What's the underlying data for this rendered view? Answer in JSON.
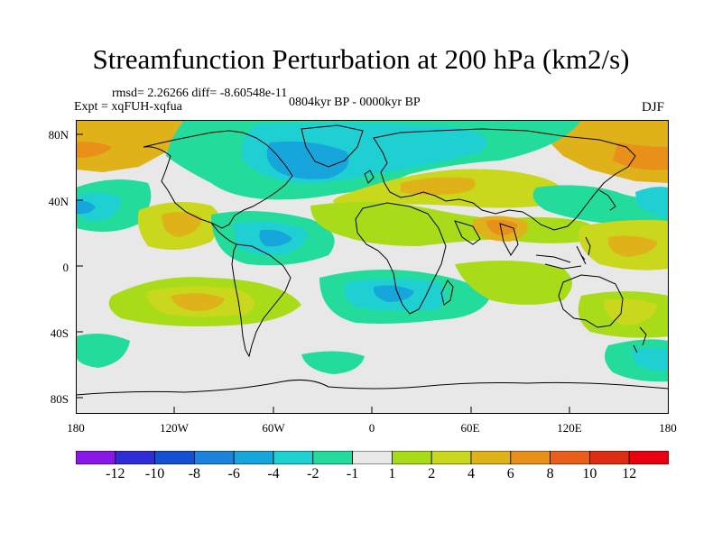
{
  "title": "Streamfunction Perturbation at 200 hPa (km2/s)",
  "stats": "rmsd= 2.26266 diff= -8.60548e-11",
  "experiment": "Expt = xqFUH-xqfua",
  "period": "0804kyr BP - 0000kyr BP",
  "season": "DJF",
  "lat_labels": [
    "80N",
    "40N",
    "0",
    "40S",
    "80S"
  ],
  "lon_labels": [
    "180",
    "120W",
    "60W",
    "0",
    "60E",
    "120E",
    "180"
  ],
  "colorbar": {
    "labels": [
      "-12",
      "-10",
      "-8",
      "-6",
      "-4",
      "-2",
      "-1",
      "1",
      "2",
      "4",
      "6",
      "8",
      "10",
      "12"
    ],
    "colors": [
      "#8a17e8",
      "#2f2ed6",
      "#1451d2",
      "#1c82dc",
      "#16a6dc",
      "#1fd0d2",
      "#23dc9c",
      "#e8e8e8",
      "#a8dc18",
      "#c9d81c",
      "#e0b21a",
      "#e8901a",
      "#e85e1a",
      "#e02c12",
      "#e8000e"
    ]
  },
  "map_colors": {
    "neutral": "#e8e8e8",
    "pos1": "#a8dc18",
    "pos2": "#c9d81c",
    "pos3": "#e0b21a",
    "pos4": "#e8901a",
    "neg1": "#23dc9c",
    "neg2": "#1fd0d2",
    "neg3": "#16a6dc",
    "neg4": "#1c82dc"
  }
}
